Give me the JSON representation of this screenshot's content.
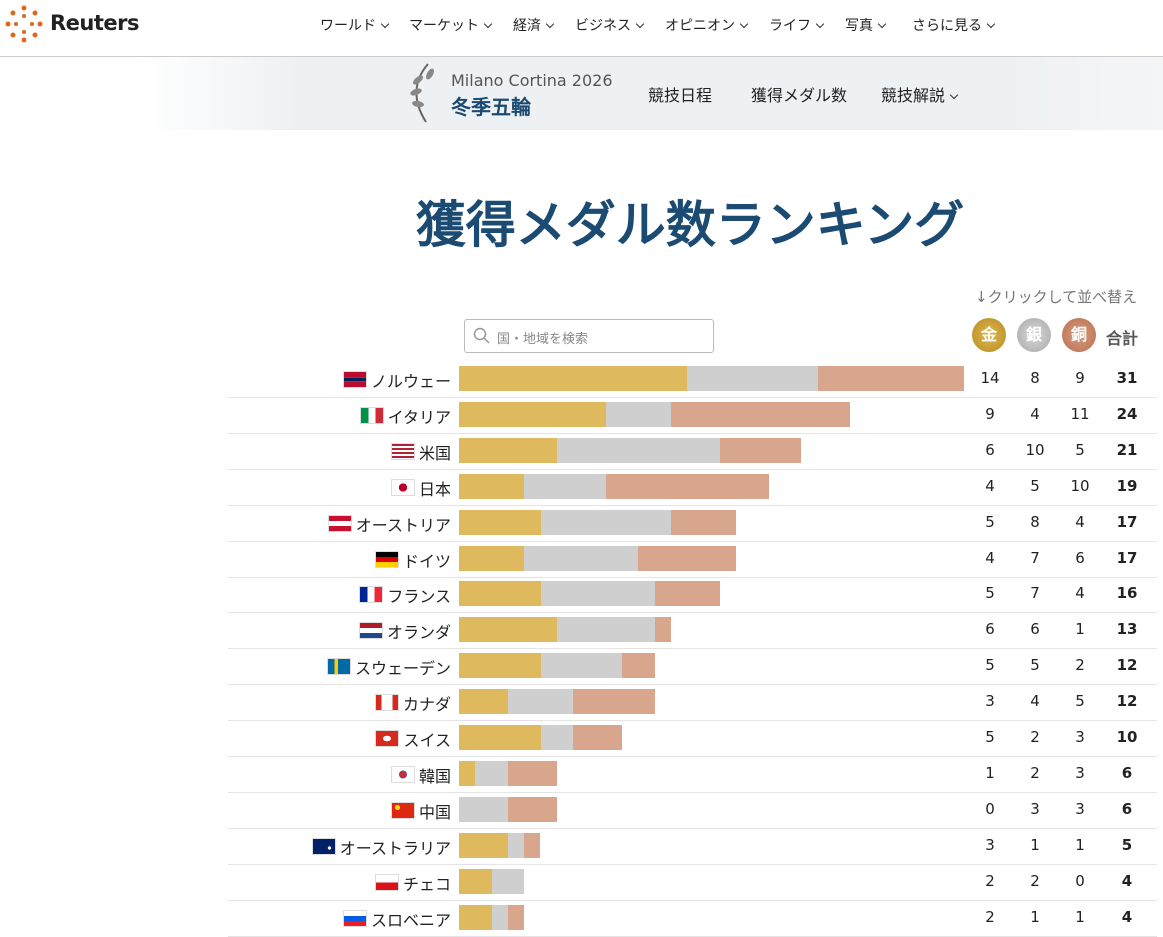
{
  "nav": {
    "logo": "Reuters",
    "items": [
      "ワールド",
      "マーケット",
      "経済",
      "ビジネス",
      "オピニオン",
      "ライフ",
      "写真",
      "さらに見る"
    ]
  },
  "subnav": {
    "event": "Milano Cortina 2026",
    "title": "冬季五輪",
    "links": [
      "競技日程",
      "獲得メダル数",
      "競技解説"
    ]
  },
  "page": {
    "title": "獲得メダル数ランキング",
    "sort_hint": "↓クリックして並べ替え",
    "search_placeholder": "国・地域を検索",
    "columns": {
      "gold": "金",
      "silver": "銀",
      "bronze": "銅",
      "total": "合計"
    }
  },
  "medals": {
    "rows": [
      {
        "country": "ノルウェー",
        "gold": 14,
        "silver": 8,
        "bronze": 9,
        "total": 31
      },
      {
        "country": "イタリア",
        "gold": 9,
        "silver": 4,
        "bronze": 11,
        "total": 24
      },
      {
        "country": "米国",
        "gold": 6,
        "silver": 10,
        "bronze": 5,
        "total": 21
      },
      {
        "country": "日本",
        "gold": 4,
        "silver": 5,
        "bronze": 10,
        "total": 19
      },
      {
        "country": "オーストリア",
        "gold": 5,
        "silver": 8,
        "bronze": 4,
        "total": 17
      },
      {
        "country": "ドイツ",
        "gold": 4,
        "silver": 7,
        "bronze": 6,
        "total": 17
      },
      {
        "country": "フランス",
        "gold": 5,
        "silver": 7,
        "bronze": 4,
        "total": 16
      },
      {
        "country": "オランダ",
        "gold": 6,
        "silver": 6,
        "bronze": 1,
        "total": 13
      },
      {
        "country": "スウェーデン",
        "gold": 5,
        "silver": 5,
        "bronze": 2,
        "total": 12
      },
      {
        "country": "カナダ",
        "gold": 3,
        "silver": 4,
        "bronze": 5,
        "total": 12
      },
      {
        "country": "スイス",
        "gold": 5,
        "silver": 2,
        "bronze": 3,
        "total": 10
      },
      {
        "country": "韓国",
        "gold": 1,
        "silver": 2,
        "bronze": 3,
        "total": 6
      },
      {
        "country": "中国",
        "gold": 0,
        "silver": 3,
        "bronze": 3,
        "total": 6
      },
      {
        "country": "オーストラリア",
        "gold": 3,
        "silver": 1,
        "bronze": 1,
        "total": 5
      },
      {
        "country": "チェコ",
        "gold": 2,
        "silver": 2,
        "bronze": 0,
        "total": 4
      },
      {
        "country": "スロベニア",
        "gold": 2,
        "silver": 1,
        "bronze": 1,
        "total": 4
      }
    ]
  }
}
